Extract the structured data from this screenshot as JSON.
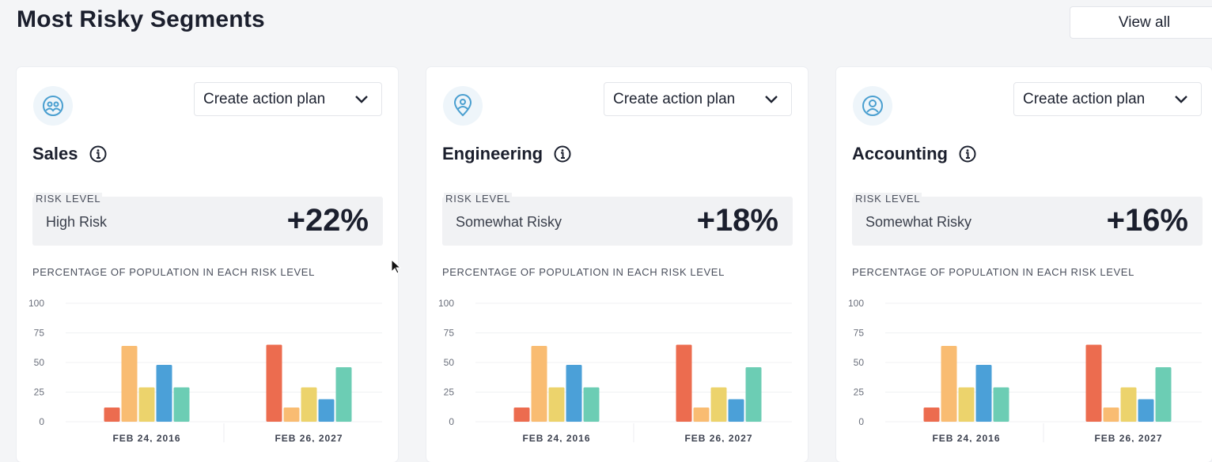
{
  "header": {
    "title": "Most Risky Segments",
    "view_all_label": "View all"
  },
  "cards": [
    {
      "icon": "team-icon",
      "action_label": "Create action plan",
      "name": "Sales",
      "risk_caption": "RISK LEVEL",
      "risk_level": "High Risk",
      "risk_change": "+22%",
      "chart_caption": "PERCENTAGE OF POPULATION IN EACH RISK LEVEL",
      "chart_data": {
        "type": "bar",
        "categories": [
          "FEB 24, 2016",
          "FEB 26, 2027"
        ],
        "yticks": [
          "100",
          "75",
          "50",
          "25",
          "0"
        ],
        "ylim": [
          0,
          100
        ],
        "grid": true,
        "colors": [
          "#ec6c4f",
          "#f9bc72",
          "#ecd36c",
          "#4ba0d8",
          "#6ccdb4"
        ],
        "series": [
          {
            "values": [
              12,
              65
            ]
          },
          {
            "values": [
              64,
              12
            ]
          },
          {
            "values": [
              29,
              29
            ]
          },
          {
            "values": [
              48,
              19
            ]
          },
          {
            "values": [
              29,
              46
            ]
          }
        ]
      }
    },
    {
      "icon": "location-pin-icon",
      "action_label": "Create action plan",
      "name": "Engineering",
      "risk_caption": "RISK LEVEL",
      "risk_level": "Somewhat Risky",
      "risk_change": "+18%",
      "chart_caption": "PERCENTAGE OF POPULATION IN EACH RISK LEVEL",
      "chart_data": {
        "type": "bar",
        "categories": [
          "FEB 24, 2016",
          "FEB 26, 2027"
        ],
        "yticks": [
          "100",
          "75",
          "50",
          "25",
          "0"
        ],
        "ylim": [
          0,
          100
        ],
        "grid": true,
        "colors": [
          "#ec6c4f",
          "#f9bc72",
          "#ecd36c",
          "#4ba0d8",
          "#6ccdb4"
        ],
        "series": [
          {
            "values": [
              12,
              65
            ]
          },
          {
            "values": [
              64,
              12
            ]
          },
          {
            "values": [
              29,
              29
            ]
          },
          {
            "values": [
              48,
              19
            ]
          },
          {
            "values": [
              29,
              46
            ]
          }
        ]
      }
    },
    {
      "icon": "user-circle-icon",
      "action_label": "Create action plan",
      "name": "Accounting",
      "risk_caption": "RISK LEVEL",
      "risk_level": "Somewhat Risky",
      "risk_change": "+16%",
      "chart_caption": "PERCENTAGE OF POPULATION IN EACH RISK LEVEL",
      "chart_data": {
        "type": "bar",
        "categories": [
          "FEB 24, 2016",
          "FEB 26, 2027"
        ],
        "yticks": [
          "100",
          "75",
          "50",
          "25",
          "0"
        ],
        "ylim": [
          0,
          100
        ],
        "grid": true,
        "colors": [
          "#ec6c4f",
          "#f9bc72",
          "#ecd36c",
          "#4ba0d8",
          "#6ccdb4"
        ],
        "series": [
          {
            "values": [
              12,
              65
            ]
          },
          {
            "values": [
              64,
              12
            ]
          },
          {
            "values": [
              29,
              29
            ]
          },
          {
            "values": [
              48,
              19
            ]
          },
          {
            "values": [
              29,
              46
            ]
          }
        ]
      }
    }
  ]
}
